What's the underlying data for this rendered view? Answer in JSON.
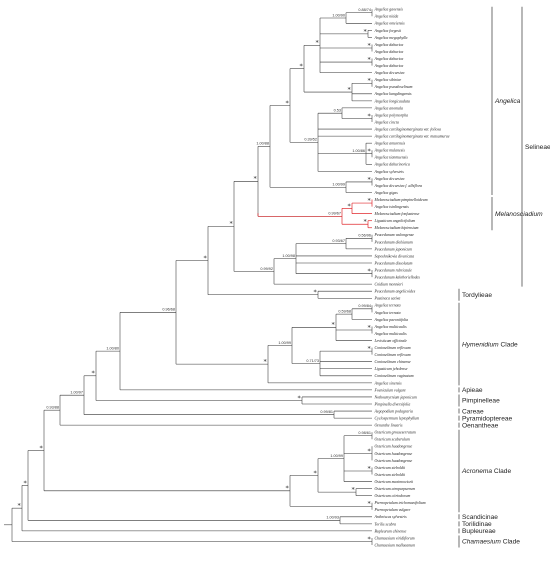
{
  "tree": {
    "leaves": [
      "Angelica gaoensis",
      "Angelica nitida",
      "Angelica omeiensis",
      "Angelica forgesii",
      "Angelica megaphylla",
      "Angelica dahurica",
      "Angelica dahurica",
      "Angelica dahurica",
      "Angelica dahurica",
      "Angelica decursiva",
      "Angelica sibiriae",
      "Angelica pseudoselinum",
      "Angelica kangdingensis",
      "Angelica longicaudata",
      "Angelica anomala",
      "Angelica polymorpha",
      "Angelica cincta",
      "Angelica cartilaginomarginata var. foliosa",
      "Angelica cartilaginomarginata var. matsumurae",
      "Angelica amurensis",
      "Angelica mulanesis",
      "Angelica tianmuensis",
      "Angelica dahurinorica",
      "Angelica sylvestris",
      "Angelica decursiva",
      "Angelica decursiva f. albiflora",
      "Angelica gigas",
      "Melanosciadium pimpinelloideum",
      "Angelica tsinlingensis",
      "Melanosciadium fonfuatense",
      "Ligusticum angelicifolium",
      "Melanosciadium hipiensium",
      "Peucedanum wulongense",
      "Peucedanum dielsianum",
      "Peucedanum japonicum",
      "Saposhnikovia divaricata",
      "Peucedanum dissolutum",
      "Peucedanum rubricaule",
      "Peucedanum kakrhoriellodes",
      "Cnidium monnieri",
      "Peucedanum angelicoides",
      "Pastinaca sativa",
      "Angelica ternata",
      "Angelica ternata",
      "Angelica paeoniifolia",
      "Angelica multicaulis",
      "Angelica multicaulis",
      "Levisticum officinale",
      "Conioselinum reflexum",
      "Conioselinum reflexum",
      "Conioselinum chinense",
      "Ligusticum jeholense",
      "Conioselinum vaginatum",
      "Angelica sinensis",
      "Foeniculum vulgare",
      "Nothosmyrnium japonicum",
      "Pimpinella diversifolia",
      "Aegopodium podagraria",
      "Cyclospermum leptophyllum",
      "Oenanthe linearis",
      "Ostericum grosseserratum",
      "Ostericum scaberulum",
      "Ostericum huadongense",
      "Ostericum huadongense",
      "Ostericum huadongense",
      "Ostericum sieboldii",
      "Ostericum sieboldii",
      "Ostericum maximowiczii",
      "Ostericum atropurpureum",
      "Ostericum citriodorum",
      "Pternopetalum trichomanifolium",
      "Pternopetalum vulgare",
      "Anthriscus sylvestris",
      "Torilis scabra",
      "Bupleurum chinense",
      "Chamaesium viridiflorum",
      "Chamaesium mallaeanum"
    ],
    "support_labels": [
      "0.88/74",
      "1.00/90",
      "0.39/52",
      "0.53",
      "1.00/86",
      "1.00/88",
      "1.00/99",
      "0.99/67",
      "0.93/67",
      "0.56/96",
      "1.00/98",
      "0.99/92",
      "0.99/84",
      "0.59/68",
      "1.00/99",
      "0.71/73",
      "0.96/68",
      "1.00/80",
      "1.00/97",
      "0.93/88",
      "0.99/81",
      "0.98/61",
      "1.00/99",
      "1.00/93"
    ],
    "star_symbol": "*",
    "clades": [
      {
        "label": "Angelica",
        "italic": true
      },
      {
        "label": "Selineae",
        "italic": false
      },
      {
        "label": "Melanosciadium",
        "italic": true
      },
      {
        "label": "Tordylieae",
        "italic": false
      },
      {
        "label": "Hymenidium",
        "italic": true,
        "suffix": " Clade"
      },
      {
        "label": "Apieae",
        "italic": false
      },
      {
        "label": "Pimpinelleae",
        "italic": false
      },
      {
        "label": "Careae",
        "italic": false
      },
      {
        "label": "Pyramidoptereae",
        "italic": false
      },
      {
        "label": "Oenantheae",
        "italic": false
      },
      {
        "label": "Acronema",
        "italic": true,
        "suffix": " Clade"
      },
      {
        "label": "Scandicinae",
        "italic": false
      },
      {
        "label": "Torilidinae",
        "italic": false
      },
      {
        "label": "Bupleureae",
        "italic": false
      },
      {
        "label": "Chamaesium",
        "italic": true,
        "suffix": " Clade"
      }
    ],
    "colors": {
      "branch": "#333333",
      "highlight": "#e0292d"
    }
  }
}
